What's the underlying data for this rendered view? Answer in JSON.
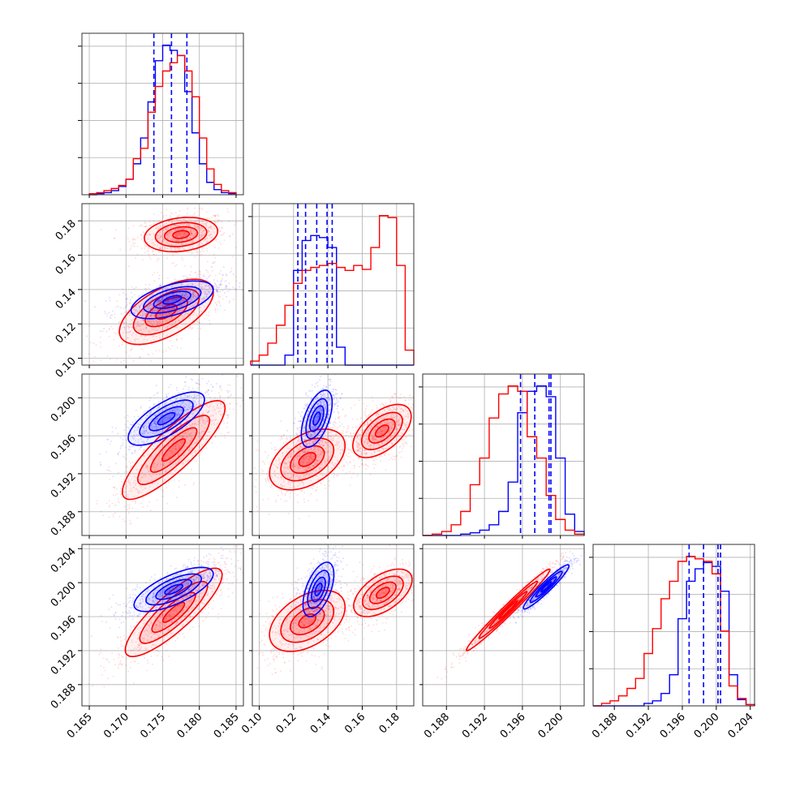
{
  "chart_data": {
    "type": "corner",
    "parameters": 4,
    "grid": true,
    "series": [
      {
        "color": "#0000ff"
      },
      {
        "color": "#ff0000"
      }
    ],
    "params": [
      {
        "range": [
          0.164,
          0.186
        ],
        "ticks": [
          0.165,
          0.17,
          0.175,
          0.18,
          0.185
        ],
        "tick_labels": [
          "0.165",
          "0.170",
          "0.175",
          "0.180",
          "0.185"
        ],
        "axis": "x"
      },
      {
        "range": [
          0.096,
          0.19
        ],
        "ticks": [
          0.1,
          0.12,
          0.14,
          0.16,
          0.18
        ],
        "tick_labels_y": [
          "0.10",
          "0.12",
          "0.14",
          "0.16",
          "0.18"
        ],
        "tick_labels_x": [
          "0.10",
          "0.12",
          "0.14",
          "0.16",
          "0.18"
        ]
      },
      {
        "range": [
          0.1855,
          0.2025
        ],
        "ticks": [
          0.188,
          0.192,
          0.196,
          0.2
        ],
        "tick_labels": [
          "0.188",
          "0.192",
          "0.196",
          "0.200"
        ]
      },
      {
        "range": [
          0.1855,
          0.2045
        ],
        "ticks": [
          0.188,
          0.192,
          0.196,
          0.2,
          0.204
        ],
        "tick_labels": [
          "0.188",
          "0.192",
          "0.196",
          "0.200",
          "0.204"
        ]
      }
    ],
    "quantile_lines": [
      [
        0.1738,
        0.1762,
        0.1783
      ],
      [
        0.1225,
        0.127,
        0.1335,
        0.1395,
        0.1425
      ],
      [
        0.1958,
        0.1973,
        0.1988,
        0.199
      ],
      [
        0.1968,
        0.1985,
        0.2002,
        0.2005
      ]
    ],
    "histograms": [
      {
        "bins": [
          0.165,
          0.166,
          0.167,
          0.168,
          0.169,
          0.17,
          0.171,
          0.172,
          0.173,
          0.174,
          0.175,
          0.176,
          0.177,
          0.178,
          0.179,
          0.18,
          0.181,
          0.182,
          0.183,
          0.184,
          0.185
        ],
        "blue": [
          0,
          1,
          2,
          4,
          8,
          15,
          30,
          55,
          90,
          130,
          145,
          140,
          135,
          100,
          60,
          30,
          12,
          5,
          2,
          1
        ],
        "red": [
          1,
          2,
          4,
          6,
          9,
          15,
          35,
          45,
          80,
          105,
          120,
          128,
          135,
          120,
          95,
          55,
          25,
          10,
          4,
          2
        ]
      },
      {
        "bins": [
          0.095,
          0.1,
          0.105,
          0.11,
          0.115,
          0.12,
          0.125,
          0.13,
          0.135,
          0.14,
          0.145,
          0.15,
          0.155,
          0.16,
          0.165,
          0.17,
          0.175,
          0.18,
          0.185,
          0.19
        ],
        "blue": [
          0,
          0,
          0,
          0,
          10,
          95,
          125,
          130,
          128,
          118,
          18,
          0,
          0,
          0,
          0,
          0,
          0,
          0,
          0
        ],
        "red": [
          4,
          10,
          22,
          40,
          60,
          82,
          95,
          98,
          100,
          102,
          98,
          95,
          100,
          96,
          118,
          150,
          148,
          100,
          15
        ]
      },
      {
        "bins": [
          0.1855,
          0.1865,
          0.1875,
          0.1885,
          0.1895,
          0.1905,
          0.1915,
          0.1925,
          0.1935,
          0.1945,
          0.1955,
          0.1965,
          0.1975,
          0.1985,
          0.1995,
          0.2005,
          0.2015,
          0.2025
        ],
        "blue": [
          0,
          0,
          0,
          0,
          1,
          2,
          4,
          8,
          18,
          40,
          92,
          108,
          112,
          104,
          58,
          16,
          3
        ],
        "red": [
          0,
          1,
          3,
          8,
          18,
          38,
          58,
          88,
          106,
          112,
          108,
          74,
          58,
          30,
          12,
          4,
          1
        ]
      },
      {
        "bins": [
          0.1855,
          0.1865,
          0.1875,
          0.1885,
          0.1895,
          0.1905,
          0.1915,
          0.1925,
          0.1935,
          0.1945,
          0.1955,
          0.1965,
          0.1975,
          0.1985,
          0.1995,
          0.2005,
          0.2015,
          0.2025,
          0.2035,
          0.2045
        ],
        "blue": [
          0,
          0,
          0,
          0,
          0,
          0,
          2,
          4,
          10,
          25,
          70,
          100,
          110,
          115,
          112,
          92,
          25,
          5,
          1
        ],
        "red": [
          0,
          2,
          4,
          8,
          14,
          22,
          42,
          62,
          86,
          100,
          116,
          120,
          118,
          116,
          106,
          60,
          16,
          6,
          1
        ]
      }
    ],
    "clouds": [
      {
        "i": 1,
        "j": 0,
        "blue": {
          "mean": [
            0.1763,
            0.134
          ],
          "std": [
            0.0028,
            0.0055
          ],
          "rho": 0.55
        },
        "red": [
          {
            "mean": [
              0.1775,
              0.172
            ],
            "std": [
              0.0025,
              0.005
            ],
            "rho": 0.2
          },
          {
            "mean": [
              0.1755,
              0.127
            ],
            "std": [
              0.0032,
              0.0095
            ],
            "rho": 0.6
          }
        ]
      },
      {
        "i": 2,
        "j": 0,
        "blue": {
          "mean": [
            0.1755,
            0.1978
          ],
          "std": [
            0.0026,
            0.0014
          ],
          "rho": 0.72
        },
        "red": [
          {
            "mean": [
              0.1765,
              0.1945
            ],
            "std": [
              0.0035,
              0.0026
            ],
            "rho": 0.85
          }
        ]
      },
      {
        "i": 2,
        "j": 1,
        "blue": {
          "mean": [
            0.1335,
            0.1978
          ],
          "std": [
            0.0045,
            0.0015
          ],
          "rho": 0.55
        },
        "red": [
          {
            "mean": [
              0.1715,
              0.1965
            ],
            "std": [
              0.0085,
              0.0014
            ],
            "rho": 0.55
          },
          {
            "mean": [
              0.128,
              0.1935
            ],
            "std": [
              0.011,
              0.0016
            ],
            "rho": 0.45
          }
        ]
      },
      {
        "i": 3,
        "j": 0,
        "blue": {
          "mean": [
            0.1765,
            0.1992
          ],
          "std": [
            0.0027,
            0.0013
          ],
          "rho": 0.7
        },
        "red": [
          {
            "mean": [
              0.1765,
              0.1965
            ],
            "std": [
              0.0033,
              0.0026
            ],
            "rho": 0.85
          }
        ]
      },
      {
        "i": 3,
        "j": 1,
        "blue": {
          "mean": [
            0.1345,
            0.1992
          ],
          "std": [
            0.0045,
            0.0016
          ],
          "rho": 0.55
        },
        "red": [
          {
            "mean": [
              0.172,
              0.1988
            ],
            "std": [
              0.0085,
              0.0014
            ],
            "rho": 0.55
          },
          {
            "mean": [
              0.128,
              0.1955
            ],
            "std": [
              0.011,
              0.0018
            ],
            "rho": 0.45
          }
        ]
      },
      {
        "i": 3,
        "j": 2,
        "blue": {
          "mean": [
            0.1985,
            0.1995
          ],
          "std": [
            0.0012,
            0.0013
          ],
          "rho": 0.95
        },
        "red": [
          {
            "mean": [
              0.1945,
              0.1968
            ],
            "std": [
              0.0022,
              0.0024
            ],
            "rho": 0.985
          }
        ]
      }
    ]
  }
}
